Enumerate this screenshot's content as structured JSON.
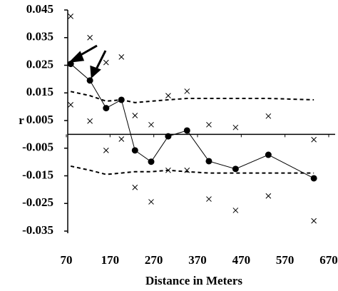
{
  "chart_data": {
    "type": "line",
    "xlabel": "Distance in Meters",
    "ylabel": "r",
    "x": [
      80,
      124,
      161,
      196,
      227,
      264,
      303,
      346,
      396,
      457,
      532,
      636
    ],
    "series": [
      {
        "color": "#000000",
        "style": "line-marker",
        "values": [
          0.0255,
          0.0195,
          0.0095,
          0.0125,
          -0.0058,
          -0.0099,
          -0.0007,
          0.0014,
          -0.0097,
          -0.0125,
          -0.0074,
          -0.0159
        ]
      },
      {
        "color": "#000000",
        "style": "cross",
        "values": [
          0.0427,
          0.035,
          0.026,
          0.028,
          0.0068,
          0.0035,
          0.014,
          0.0156,
          0.0035,
          0.0025,
          0.0066,
          -0.0019
        ]
      },
      {
        "color": "#000000",
        "style": "cross",
        "values": [
          0.0107,
          0.0048,
          -0.0058,
          -0.0017,
          -0.0192,
          -0.0244,
          -0.013,
          -0.013,
          -0.0234,
          -0.0275,
          -0.0223,
          -0.0313
        ]
      },
      {
        "color": "#000000",
        "style": "dashed",
        "values": [
          0.0155,
          0.014,
          0.012,
          0.0125,
          0.0115,
          0.012,
          0.0125,
          0.013,
          0.013,
          0.013,
          0.013,
          0.0125
        ]
      },
      {
        "color": "#000000",
        "style": "dashed",
        "values": [
          -0.0115,
          -0.013,
          -0.0145,
          -0.014,
          -0.0135,
          -0.0135,
          -0.013,
          -0.0135,
          -0.014,
          -0.014,
          -0.014,
          -0.014
        ]
      }
    ],
    "xlim": [
      70,
      670
    ],
    "xticks": [
      70,
      170,
      270,
      370,
      470,
      570,
      670
    ],
    "ylim": [
      -0.035,
      0.045
    ],
    "yticks": [
      0.045,
      0.035,
      0.025,
      0.015,
      0.005,
      -0.005,
      -0.015,
      -0.025,
      -0.035
    ]
  }
}
